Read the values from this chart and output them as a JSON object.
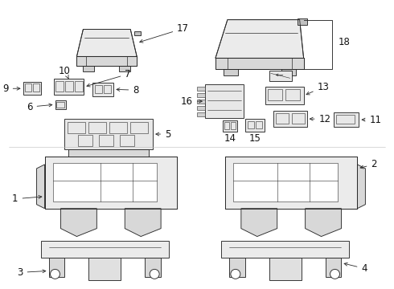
{
  "background": "#ffffff",
  "line_color": "#2a2a2a",
  "label_color": "#111111",
  "fig_w": 4.9,
  "fig_h": 3.6,
  "dpi": 100
}
